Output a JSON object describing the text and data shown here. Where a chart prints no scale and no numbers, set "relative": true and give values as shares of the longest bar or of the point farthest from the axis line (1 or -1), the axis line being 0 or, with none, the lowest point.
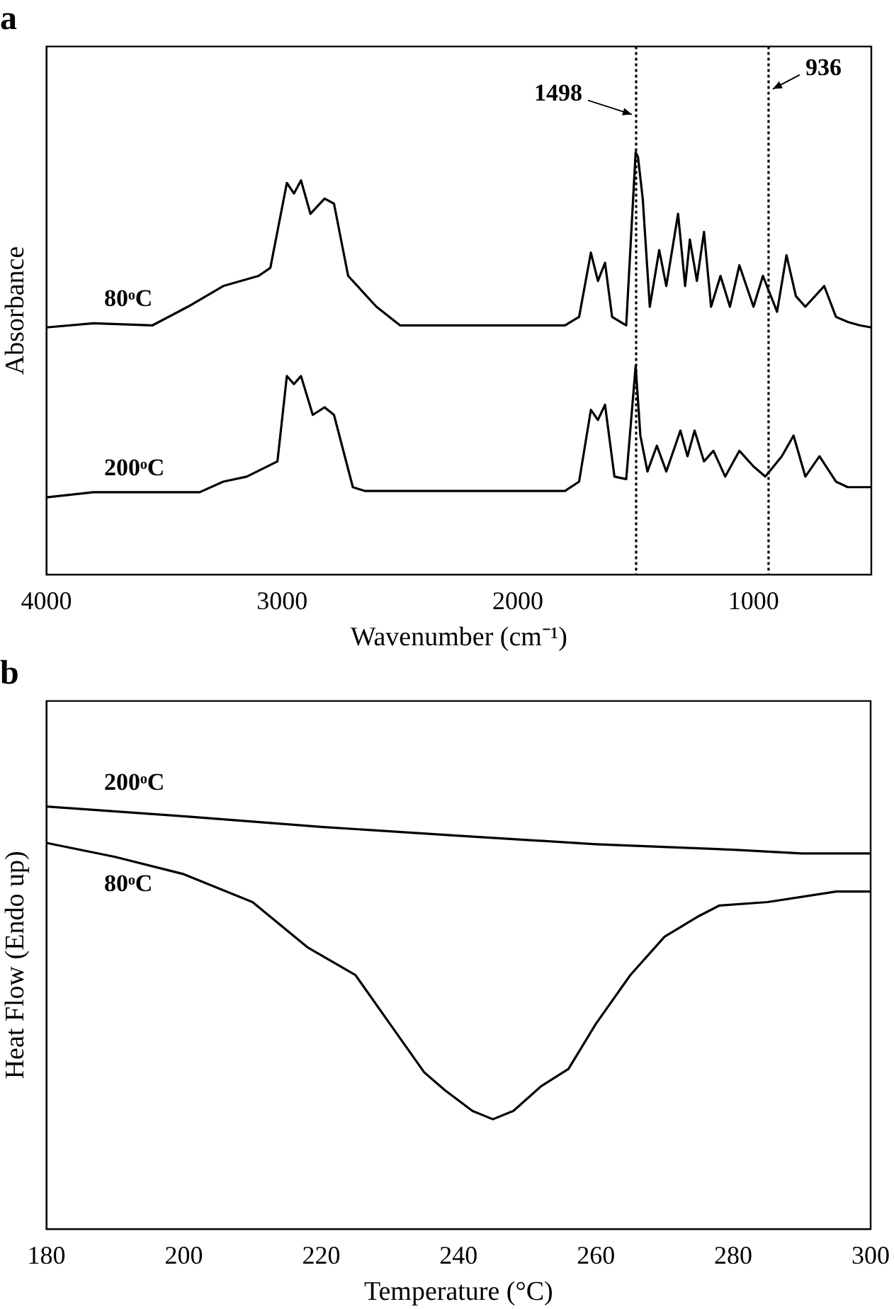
{
  "chart_data": [
    {
      "type": "line",
      "title": "a",
      "xlabel": "Wavenumber (cm⁻¹)",
      "ylabel": "Absorbance",
      "relative": true,
      "legend": false,
      "grid": false,
      "marker": "none",
      "line_style": "solid",
      "xlim": [
        4000,
        500
      ],
      "xticks": [
        4000,
        3000,
        2000,
        1000
      ],
      "ref_lines": [
        {
          "axis": "x",
          "value": 1498,
          "label": "1498",
          "line_style": "dotted"
        },
        {
          "axis": "x",
          "value": 936,
          "label": "936",
          "line_style": "dotted"
        }
      ],
      "series": [
        {
          "name": "80ᵒC",
          "color": "#000000",
          "x": [
            4000,
            3800,
            3550,
            3400,
            3250,
            3100,
            3050,
            2980,
            2950,
            2920,
            2880,
            2820,
            2780,
            2720,
            2600,
            2500,
            2000,
            1800,
            1740,
            1690,
            1660,
            1630,
            1600,
            1540,
            1500,
            1490,
            1470,
            1440,
            1400,
            1370,
            1320,
            1290,
            1270,
            1240,
            1210,
            1180,
            1140,
            1100,
            1060,
            1000,
            960,
            900,
            860,
            820,
            780,
            700,
            650,
            600,
            550,
            500
          ],
          "values": [
            0.585,
            0.595,
            0.59,
            0.634,
            0.683,
            0.707,
            0.726,
            0.927,
            0.902,
            0.933,
            0.854,
            0.89,
            0.878,
            0.707,
            0.634,
            0.59,
            0.59,
            0.59,
            0.61,
            0.762,
            0.695,
            0.738,
            0.61,
            0.59,
            1.0,
            0.988,
            0.89,
            0.634,
            0.768,
            0.683,
            0.854,
            0.683,
            0.793,
            0.695,
            0.811,
            0.634,
            0.707,
            0.634,
            0.732,
            0.634,
            0.707,
            0.622,
            0.756,
            0.659,
            0.634,
            0.683,
            0.61,
            0.598,
            0.59,
            0.585
          ]
        },
        {
          "name": "200ᵒC",
          "color": "#000000",
          "x": [
            4000,
            3800,
            3350,
            3250,
            3150,
            3020,
            2980,
            2950,
            2920,
            2870,
            2820,
            2780,
            2700,
            2650,
            2000,
            1800,
            1740,
            1690,
            1660,
            1630,
            1590,
            1540,
            1500,
            1480,
            1450,
            1410,
            1370,
            1310,
            1280,
            1250,
            1210,
            1170,
            1120,
            1060,
            1000,
            950,
            880,
            830,
            780,
            720,
            650,
            600,
            500
          ],
          "values": [
            0.183,
            0.195,
            0.195,
            0.22,
            0.232,
            0.268,
            0.47,
            0.451,
            0.47,
            0.378,
            0.396,
            0.378,
            0.207,
            0.198,
            0.198,
            0.198,
            0.22,
            0.39,
            0.366,
            0.402,
            0.232,
            0.226,
            0.494,
            0.329,
            0.244,
            0.305,
            0.244,
            0.341,
            0.28,
            0.341,
            0.268,
            0.293,
            0.232,
            0.293,
            0.256,
            0.232,
            0.28,
            0.329,
            0.232,
            0.28,
            0.22,
            0.207,
            0.207
          ]
        }
      ]
    },
    {
      "type": "line",
      "title": "b",
      "xlabel": "Temperature (°C)",
      "ylabel": "Heat Flow (Endo up)",
      "relative": true,
      "legend": false,
      "grid": false,
      "marker": "none",
      "line_style": "solid",
      "xlim": [
        180,
        300
      ],
      "xticks": [
        180,
        200,
        220,
        240,
        260,
        280,
        300
      ],
      "series": [
        {
          "name": "200ᵒC",
          "color": "#000000",
          "x": [
            180,
            200,
            220,
            240,
            260,
            280,
            290,
            300
          ],
          "values": [
            1.0,
            0.977,
            0.952,
            0.931,
            0.911,
            0.898,
            0.889,
            0.889
          ]
        },
        {
          "name": "80ᵒC",
          "color": "#000000",
          "x": [
            180,
            190,
            200,
            210,
            218,
            225,
            230,
            235,
            238,
            242,
            245,
            248,
            252,
            256,
            260,
            265,
            270,
            275,
            278,
            285,
            295,
            300
          ],
          "values": [
            0.914,
            0.881,
            0.84,
            0.774,
            0.667,
            0.601,
            0.486,
            0.371,
            0.329,
            0.28,
            0.26,
            0.28,
            0.338,
            0.379,
            0.486,
            0.601,
            0.692,
            0.741,
            0.766,
            0.774,
            0.799,
            0.799
          ]
        }
      ]
    }
  ]
}
